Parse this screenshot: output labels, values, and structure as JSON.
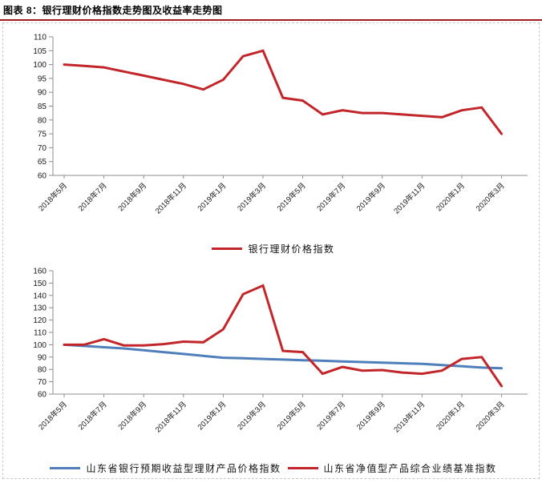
{
  "title": "图表 8：银行理财价格指数走势图及收益率走势图",
  "colors": {
    "title_rule": "#9e1b1e",
    "axis": "#8c8c8c",
    "tick_label": "#1a1a1a",
    "panel_border": "#c9c9c9"
  },
  "chart_data": [
    {
      "type": "line",
      "categories": [
        "2018年5月",
        "2018年7月",
        "2018年9月",
        "2018年11月",
        "2019年1月",
        "2019年3月",
        "2019年5月",
        "2019年7月",
        "2019年9月",
        "2019年11月",
        "2020年1月",
        "2020年3月"
      ],
      "points_per_tick": 2,
      "ylim": [
        60,
        110
      ],
      "ytick_step": 5,
      "grid": false,
      "legend_position": "bottom",
      "series": [
        {
          "name": "银行理财价格指数",
          "color": "#c3262a",
          "values": [
            100,
            99.5,
            99,
            97.5,
            96,
            94.5,
            93,
            91,
            94.5,
            103,
            105,
            88,
            87,
            82,
            83.5,
            82.5,
            82.5,
            82,
            81.5,
            81,
            83.5,
            84.5,
            75
          ]
        }
      ]
    },
    {
      "type": "line",
      "categories": [
        "2018年5月",
        "2018年7月",
        "2018年9月",
        "2018年11月",
        "2019年1月",
        "2019年3月",
        "2019年5月",
        "2019年7月",
        "2019年9月",
        "2019年11月",
        "2020年1月",
        "2020年3月"
      ],
      "points_per_tick": 2,
      "ylim": [
        60,
        160
      ],
      "ytick_step": 10,
      "grid": false,
      "legend_position": "bottom",
      "series": [
        {
          "name": "山东省银行预期收益型理财产品价格指数",
          "color": "#4e7fba",
          "values": [
            100,
            99,
            98,
            97,
            95.5,
            94,
            92.5,
            91,
            89.5,
            89,
            88.5,
            88,
            87.5,
            87,
            86.5,
            86,
            85.5,
            85,
            84.5,
            83.5,
            82.5,
            81.5,
            81
          ]
        },
        {
          "name": "山东省净值型产品综合业绩基准指数",
          "color": "#c3262a",
          "values": [
            100,
            100,
            104.5,
            99.5,
            99.5,
            100.5,
            102.5,
            102,
            112.5,
            141,
            148,
            95,
            94,
            76.5,
            82,
            79,
            79.5,
            77.5,
            76.5,
            79,
            88.5,
            90,
            66.5
          ]
        }
      ]
    }
  ]
}
